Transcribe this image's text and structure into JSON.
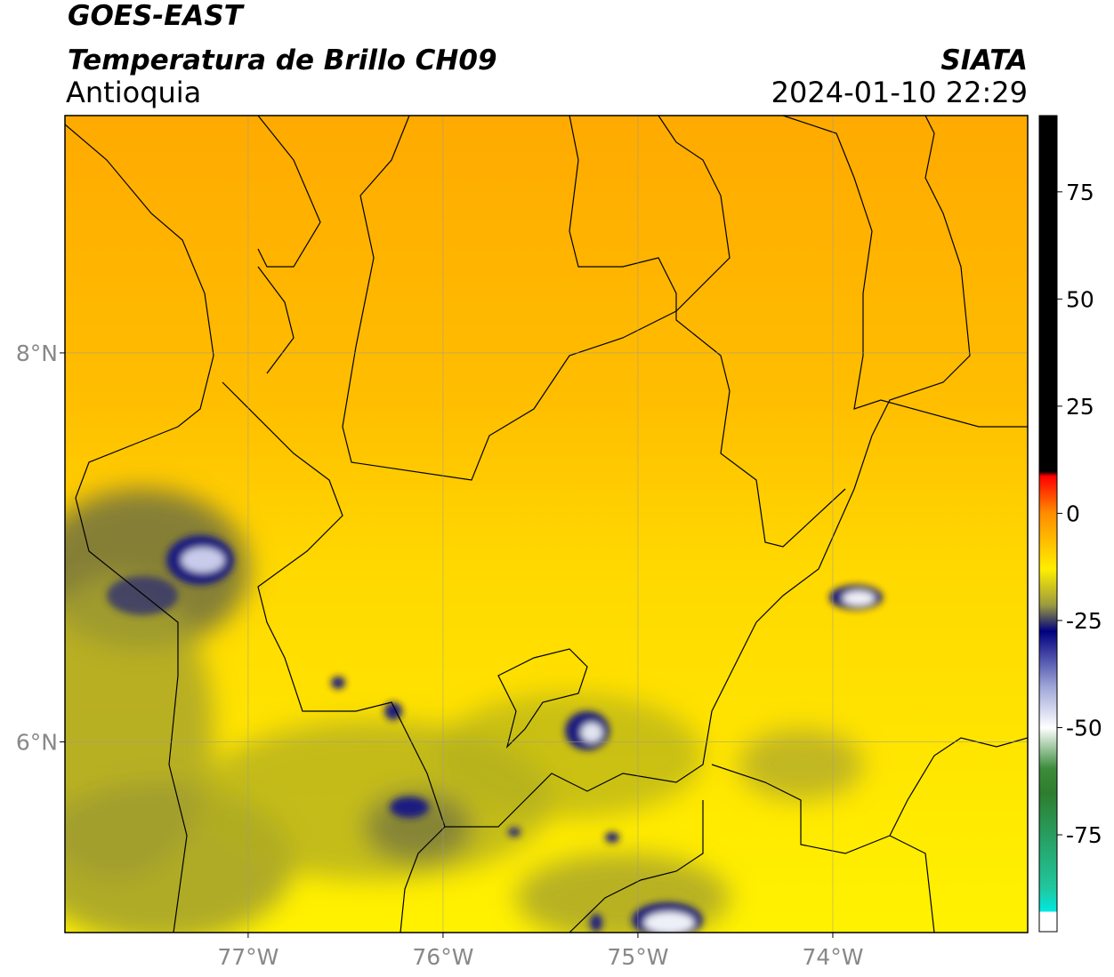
{
  "header": {
    "satellite": "GOES-EAST",
    "product": "Temperatura de Brillo CH09",
    "region": "Antioquia",
    "source": "SIATA",
    "datetime": "2024-01-10 22:29"
  },
  "map": {
    "xlim": [
      -77.94,
      -73.0
    ],
    "ylim": [
      5.02,
      9.22
    ],
    "xticks": [
      {
        "value": -77,
        "label": "77°W"
      },
      {
        "value": -76,
        "label": "76°W"
      },
      {
        "value": -75,
        "label": "75°W"
      },
      {
        "value": -74,
        "label": "74°W"
      }
    ],
    "yticks": [
      {
        "value": 6,
        "label": "6°N"
      },
      {
        "value": 8,
        "label": "8°N"
      }
    ],
    "grid": true
  },
  "colorbar": {
    "lim": [
      -97.6,
      92.8
    ],
    "ticks": [
      -75,
      -50,
      -25,
      0,
      25,
      50,
      75
    ]
  }
}
